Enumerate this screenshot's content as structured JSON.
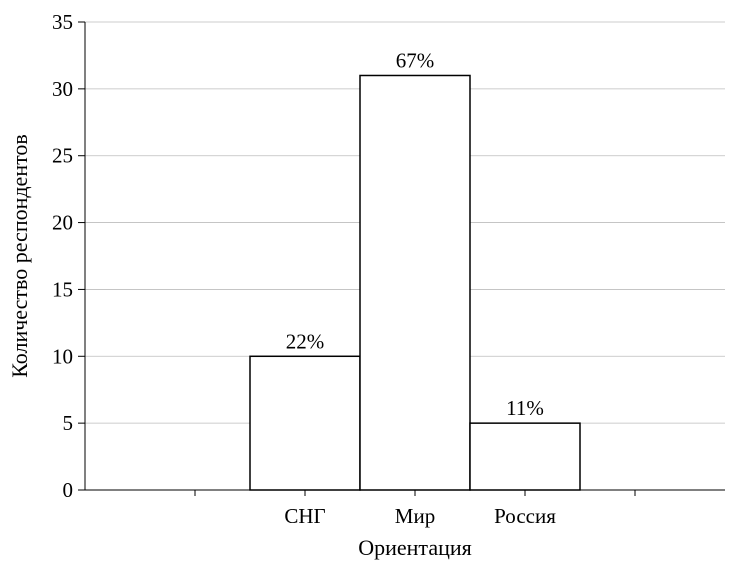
{
  "chart_data": {
    "type": "bar",
    "title": "",
    "xlabel": "Ориентация",
    "ylabel": "Количество респондентов",
    "categories": [
      "СНГ",
      "Мир",
      "Россия"
    ],
    "values": [
      10,
      31,
      5
    ],
    "data_labels": [
      "22%",
      "67%",
      "11%"
    ],
    "ylim": [
      0,
      35
    ],
    "yticks": [
      0,
      5,
      10,
      15,
      20,
      25,
      30,
      35
    ],
    "grid": true,
    "bar_fill": "#ffffff",
    "bar_stroke": "#000000",
    "grid_color": "#bdbdbd"
  }
}
